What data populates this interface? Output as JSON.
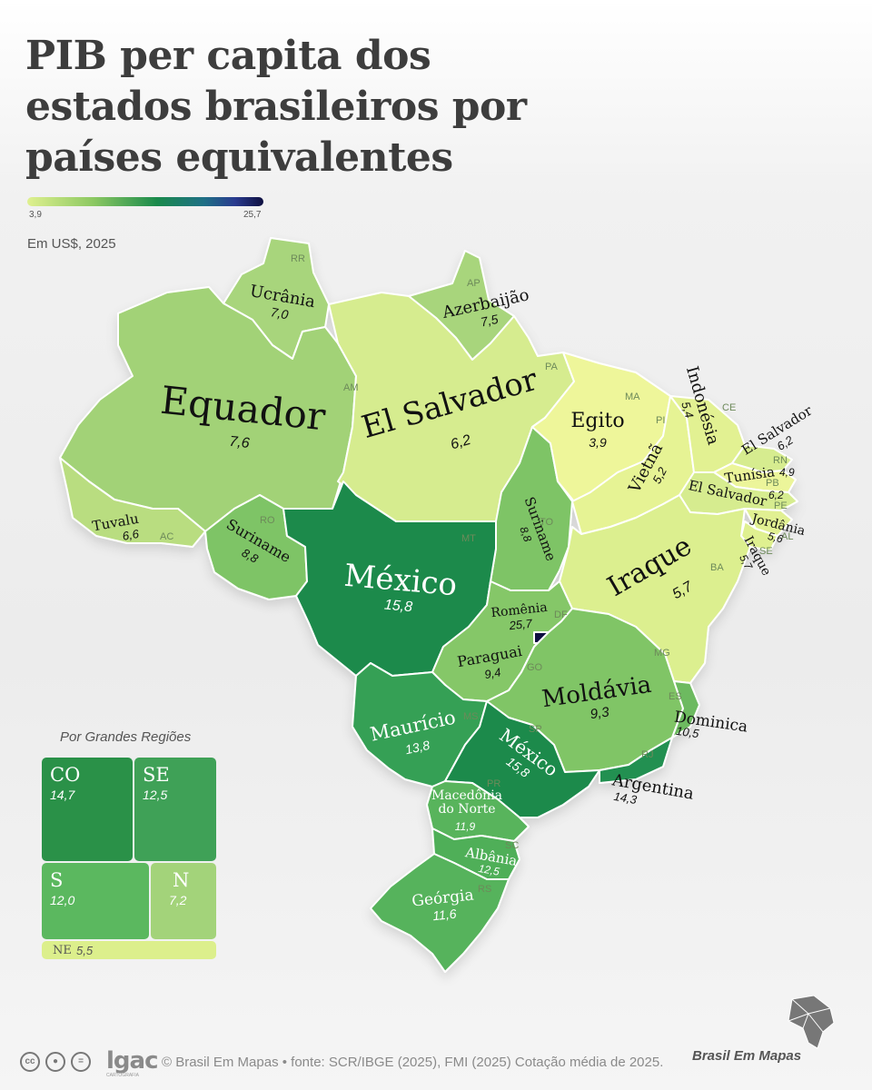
{
  "title": {
    "line1": "PIB per capita dos",
    "line2": "estados brasileiros por",
    "line3": "países equivalentes"
  },
  "scale": {
    "min": "3,9",
    "max": "25,7"
  },
  "unit": "Em US$, 2025",
  "states": [
    {
      "abbr": "RR",
      "country": "Ucrânia",
      "value": "7,0"
    },
    {
      "abbr": "AP",
      "country": "Azerbaijão",
      "value": "7,5"
    },
    {
      "abbr": "AM",
      "country": "Equador",
      "value": "7,6"
    },
    {
      "abbr": "PA",
      "country": "El Salvador",
      "value": "6,2"
    },
    {
      "abbr": "MA",
      "country": "Egito",
      "value": "3,9"
    },
    {
      "abbr": "CE",
      "country": "Indonésia",
      "value": "5,4"
    },
    {
      "abbr": "RN",
      "country": "El Salvador",
      "value": "6,2"
    },
    {
      "abbr": "PI",
      "country": "Vietnã",
      "value": "5,2"
    },
    {
      "abbr": "PB",
      "country": "Tunísia",
      "value": "4,9"
    },
    {
      "abbr": "PE",
      "country": "El Salvador",
      "value": "6,2"
    },
    {
      "abbr": "AL",
      "country": "Jordânia",
      "value": "5,6"
    },
    {
      "abbr": "SE",
      "country": "Iraque",
      "value": "5,7"
    },
    {
      "abbr": "AC",
      "country": "Tuvalu",
      "value": "6,6"
    },
    {
      "abbr": "RO",
      "country": "Suriname",
      "value": "8,8"
    },
    {
      "abbr": "TO",
      "country": "Suriname",
      "value": "8,8"
    },
    {
      "abbr": "MT",
      "country": "México",
      "value": "15,8"
    },
    {
      "abbr": "BA",
      "country": "Iraque",
      "value": "5,7"
    },
    {
      "abbr": "DF",
      "country": "Romênia",
      "value": "25,7"
    },
    {
      "abbr": "GO",
      "country": "Paraguai",
      "value": "9,4"
    },
    {
      "abbr": "MG",
      "country": "Moldávia",
      "value": "9,3"
    },
    {
      "abbr": "ES",
      "country": "Dominica",
      "value": "10,5"
    },
    {
      "abbr": "MS",
      "country": "Maurício",
      "value": "13,8"
    },
    {
      "abbr": "SP",
      "country": "México",
      "value": "15,8"
    },
    {
      "abbr": "RJ",
      "country": "Argentina",
      "value": "14,3"
    },
    {
      "abbr": "PR",
      "country": "Macedônia do Norte",
      "value": "11,9"
    },
    {
      "abbr": "SC",
      "country": "Albânia",
      "value": "12,5"
    },
    {
      "abbr": "RS",
      "country": "Geórgia",
      "value": "11,6"
    }
  ],
  "regions": {
    "title": "Por Grandes Regiões",
    "items": [
      {
        "name": "CO",
        "value": "14,7",
        "color": "#2a9148"
      },
      {
        "name": "SE",
        "value": "12,5",
        "color": "#3fa157"
      },
      {
        "name": "S",
        "value": "12,0",
        "color": "#5bb85f"
      },
      {
        "name": "N",
        "value": "7,2",
        "color": "#a3d37a"
      },
      {
        "name": "NE",
        "value": "5,5",
        "color": "#dcef8c"
      }
    ]
  },
  "footer": {
    "logo": "lgac",
    "logo_sub": "CARTOGRAFIA",
    "credit": "© Brasil Em Mapas • fonte: SCR/IBGE (2025), FMI (2025) Cotação média de 2025.",
    "brand": "Brasil Em Mapas",
    "cc_icons": [
      "creative-commons-icon",
      "attribution-icon",
      "no-derivatives-icon"
    ]
  },
  "colors": {
    "darkest": "#0f1040",
    "darkgreen": "#1a8a4c",
    "lightest": "#eef69a"
  }
}
